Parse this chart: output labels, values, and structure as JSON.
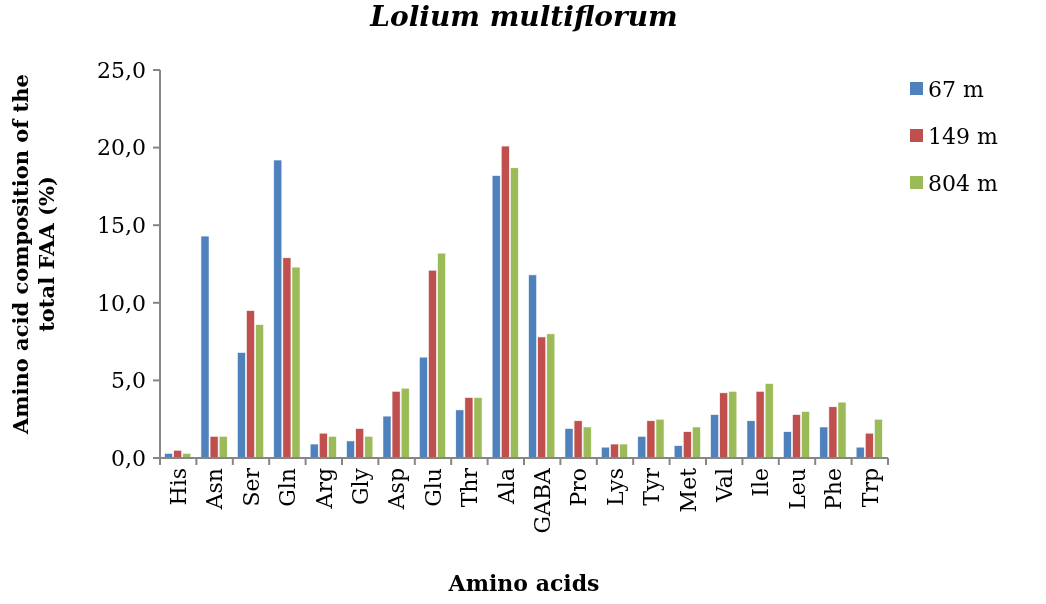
{
  "chart_data": {
    "type": "bar",
    "title": "Lolium multiflorum",
    "xlabel": "Amino acids",
    "ylabel": "Amino acid composition of the total FAA  (%)",
    "categories": [
      "His",
      "Asn",
      "Ser",
      "Gln",
      "Arg",
      "Gly",
      "Asp",
      "Glu",
      "Thr",
      "Ala",
      "GABA",
      "Pro",
      "Lys",
      "Tyr",
      "Met",
      "Val",
      "Ile",
      "Leu",
      "Phe",
      "Trp"
    ],
    "series": [
      {
        "name": "67 m",
        "color": "#4f81bd",
        "values": [
          0.3,
          14.3,
          6.8,
          19.2,
          0.9,
          1.1,
          2.7,
          6.5,
          3.1,
          18.2,
          11.8,
          1.9,
          0.7,
          1.4,
          0.8,
          2.8,
          2.4,
          1.7,
          2.0,
          0.7
        ]
      },
      {
        "name": "149 m",
        "color": "#c0504d",
        "values": [
          0.5,
          1.4,
          9.5,
          12.9,
          1.6,
          1.9,
          4.3,
          12.1,
          3.9,
          20.1,
          7.8,
          2.4,
          0.9,
          2.4,
          1.7,
          4.2,
          4.3,
          2.8,
          3.3,
          1.6
        ]
      },
      {
        "name": "804 m",
        "color": "#9bbb59",
        "values": [
          0.3,
          1.4,
          8.6,
          12.3,
          1.4,
          1.4,
          4.5,
          13.2,
          3.9,
          18.7,
          8.0,
          2.0,
          0.9,
          2.5,
          2.0,
          4.3,
          4.8,
          3.0,
          3.6,
          2.5
        ]
      }
    ],
    "ylim": [
      0,
      25
    ],
    "yticks": [
      {
        "value": 0,
        "label": "0,0"
      },
      {
        "value": 5,
        "label": "5,0"
      },
      {
        "value": 10,
        "label": "10,0"
      },
      {
        "value": 15,
        "label": "15,0"
      },
      {
        "value": 20,
        "label": "20,0"
      },
      {
        "value": 25,
        "label": "25,0"
      }
    ],
    "grid": false,
    "legend": "right"
  }
}
